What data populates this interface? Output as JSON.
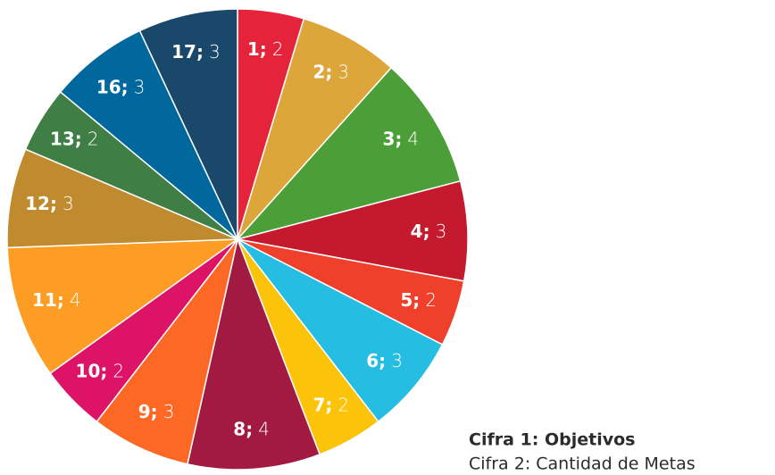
{
  "chart_data": {
    "type": "pie",
    "categories": [
      "1;",
      "2;",
      "3;",
      "4;",
      "5;",
      "6;",
      "7;",
      "8;",
      "9;",
      "10;",
      "11;",
      "12;",
      "13;",
      "16;",
      "17;"
    ],
    "values": [
      2,
      3,
      4,
      3,
      2,
      3,
      2,
      4,
      3,
      2,
      4,
      3,
      2,
      3,
      3
    ],
    "colors": [
      "#e5243b",
      "#dda63a",
      "#4c9f38",
      "#c5192d",
      "#ef402b",
      "#26bde2",
      "#fcc30b",
      "#a21942",
      "#fd6925",
      "#dd1367",
      "#fd9d24",
      "#bf8b2e",
      "#3f7e44",
      "#00689d",
      "#19486a"
    ],
    "legend": [
      "Cifra 1: Objetivos",
      "Cifra 2: Cantidad de Metas"
    ]
  }
}
